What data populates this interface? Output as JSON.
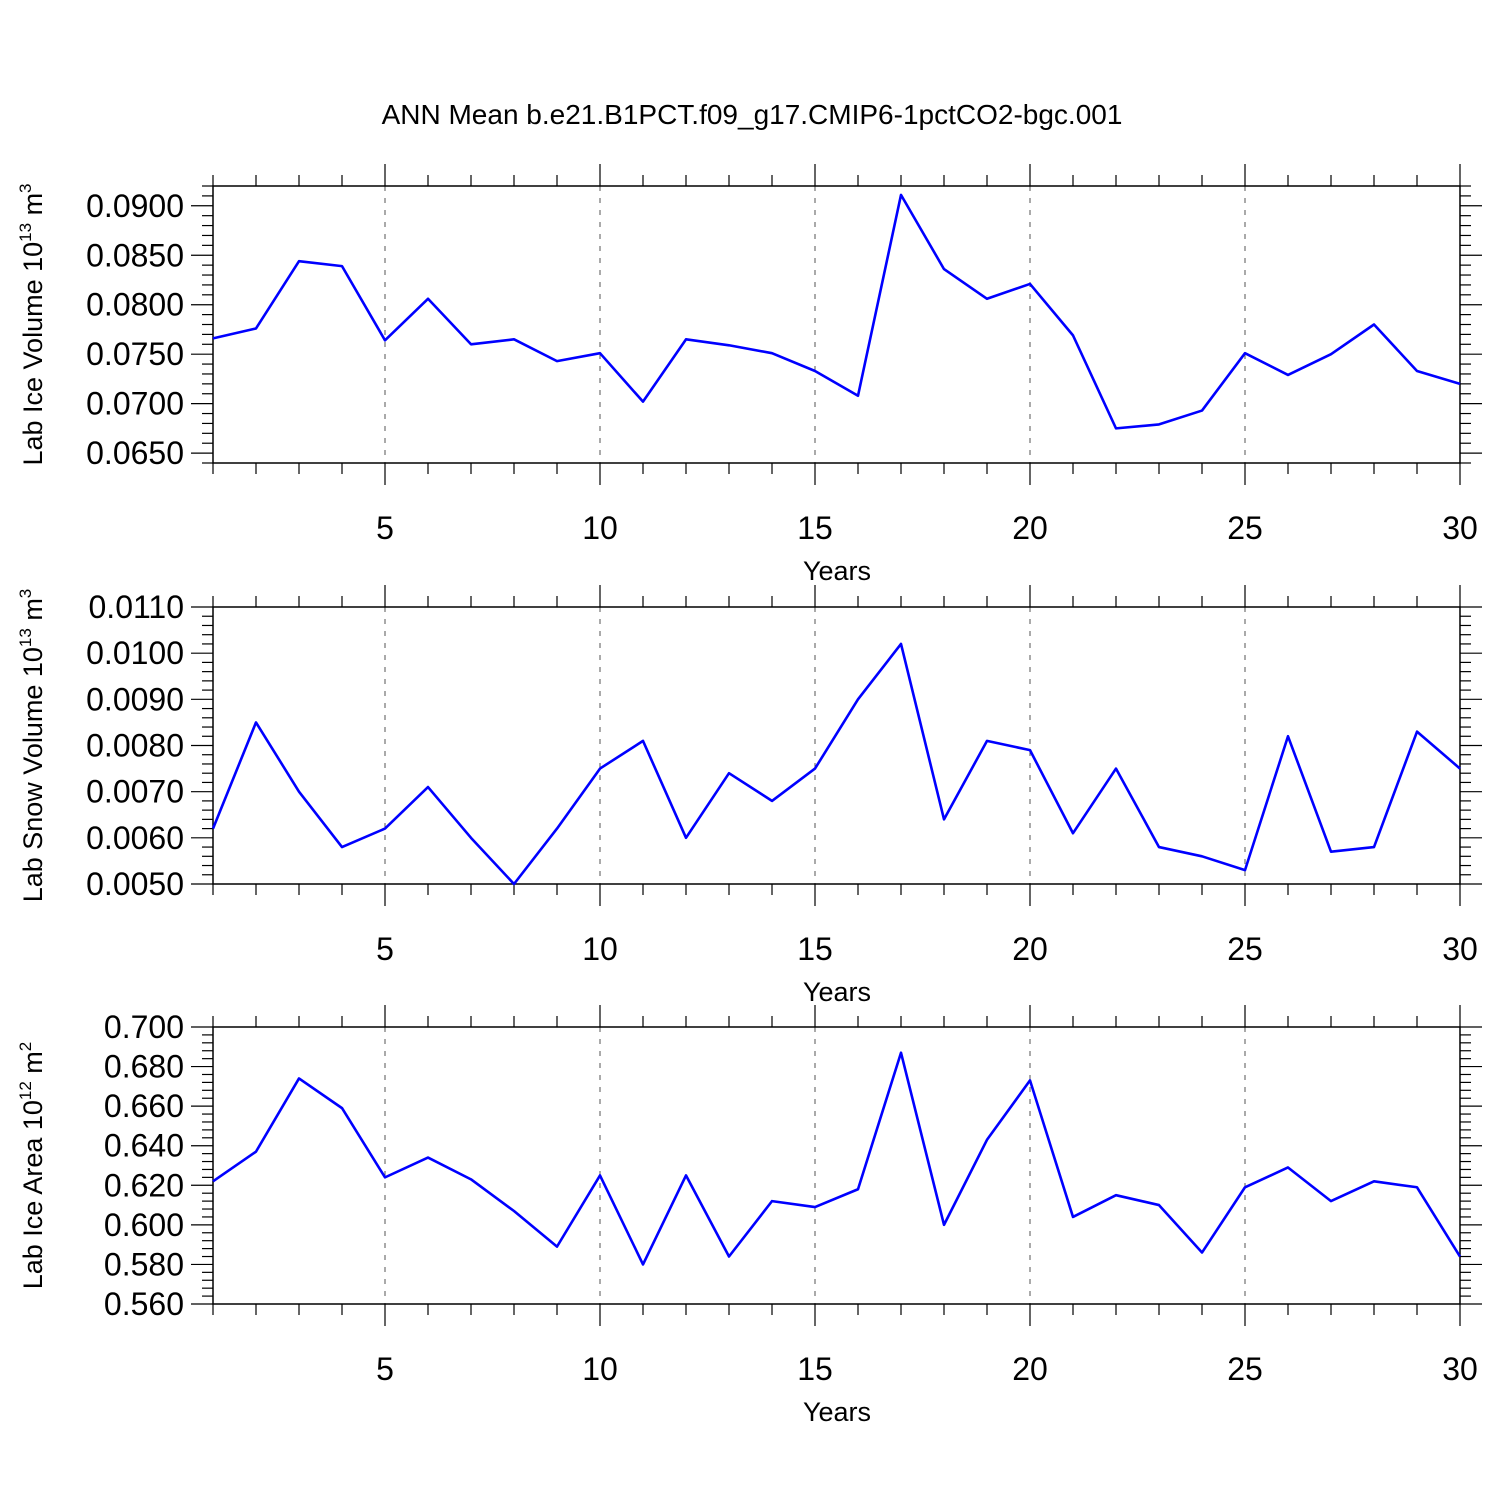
{
  "title": "ANN Mean b.e21.B1PCT.f09_g17.CMIP6-1pctCO2-bgc.001",
  "colors": {
    "line": "#0000ff",
    "frame": "#000000",
    "grid": "#555555"
  },
  "chart_data": [
    {
      "type": "line",
      "title": "",
      "xlabel": "Years",
      "ylabel_main": "Lab Ice Volume 10",
      "ylabel_exp": "13",
      "ylabel_unit": " m",
      "ylabel_unit_exp": "3",
      "xlim": [
        1,
        30
      ],
      "ylim": [
        0.064,
        0.092
      ],
      "xticks": [
        "5",
        "10",
        "15",
        "20",
        "25",
        "30"
      ],
      "yticks": [
        "0.0650",
        "0.0700",
        "0.0750",
        "0.0800",
        "0.0850",
        "0.0900"
      ],
      "grid_x": true,
      "x": [
        1,
        2,
        3,
        4,
        5,
        6,
        7,
        8,
        9,
        10,
        11,
        12,
        13,
        14,
        15,
        16,
        17,
        18,
        19,
        20,
        21,
        22,
        23,
        24,
        25,
        26,
        27,
        28,
        29,
        30
      ],
      "series": [
        {
          "values": [
            0.0766,
            0.0776,
            0.0844,
            0.0839,
            0.0764,
            0.0806,
            0.076,
            0.0765,
            0.0743,
            0.0751,
            0.0702,
            0.0765,
            0.0759,
            0.0751,
            0.0733,
            0.0708,
            0.0911,
            0.0836,
            0.0806,
            0.0821,
            0.0769,
            0.0675,
            0.0679,
            0.0693,
            0.0751,
            0.0729,
            0.075,
            0.078,
            0.0733,
            0.072
          ]
        }
      ]
    },
    {
      "type": "line",
      "title": "",
      "xlabel": "Years",
      "ylabel_main": "Lab Snow Volume 10",
      "ylabel_exp": "13",
      "ylabel_unit": " m",
      "ylabel_unit_exp": "3",
      "xlim": [
        1,
        30
      ],
      "ylim": [
        0.005,
        0.011
      ],
      "xticks": [
        "5",
        "10",
        "15",
        "20",
        "25",
        "30"
      ],
      "yticks": [
        "0.0050",
        "0.0060",
        "0.0070",
        "0.0080",
        "0.0090",
        "0.0100",
        "0.0110"
      ],
      "grid_x": true,
      "x": [
        1,
        2,
        3,
        4,
        5,
        6,
        7,
        8,
        9,
        10,
        11,
        12,
        13,
        14,
        15,
        16,
        17,
        18,
        19,
        20,
        21,
        22,
        23,
        24,
        25,
        26,
        27,
        28,
        29,
        30
      ],
      "series": [
        {
          "values": [
            0.0062,
            0.0085,
            0.007,
            0.0058,
            0.0062,
            0.0071,
            0.006,
            0.005,
            0.0062,
            0.0075,
            0.0081,
            0.006,
            0.0074,
            0.0068,
            0.0075,
            0.009,
            0.0102,
            0.0064,
            0.0081,
            0.0079,
            0.0061,
            0.0075,
            0.0058,
            0.0056,
            0.0053,
            0.0082,
            0.0057,
            0.0058,
            0.0083,
            0.0075
          ]
        }
      ]
    },
    {
      "type": "line",
      "title": "",
      "xlabel": "Years",
      "ylabel_main": "Lab Ice Area 10",
      "ylabel_exp": "12",
      "ylabel_unit": " m",
      "ylabel_unit_exp": "2",
      "xlim": [
        1,
        30
      ],
      "ylim": [
        0.56,
        0.7
      ],
      "xticks": [
        "5",
        "10",
        "15",
        "20",
        "25",
        "30"
      ],
      "yticks": [
        "0.560",
        "0.580",
        "0.600",
        "0.620",
        "0.640",
        "0.660",
        "0.680",
        "0.700"
      ],
      "grid_x": true,
      "x": [
        1,
        2,
        3,
        4,
        5,
        6,
        7,
        8,
        9,
        10,
        11,
        12,
        13,
        14,
        15,
        16,
        17,
        18,
        19,
        20,
        21,
        22,
        23,
        24,
        25,
        26,
        27,
        28,
        29,
        30
      ],
      "series": [
        {
          "values": [
            0.622,
            0.637,
            0.674,
            0.659,
            0.624,
            0.634,
            0.623,
            0.607,
            0.589,
            0.625,
            0.58,
            0.625,
            0.584,
            0.612,
            0.609,
            0.618,
            0.687,
            0.6,
            0.643,
            0.673,
            0.604,
            0.615,
            0.61,
            0.586,
            0.619,
            0.629,
            0.612,
            0.622,
            0.619,
            0.584
          ]
        }
      ]
    }
  ]
}
